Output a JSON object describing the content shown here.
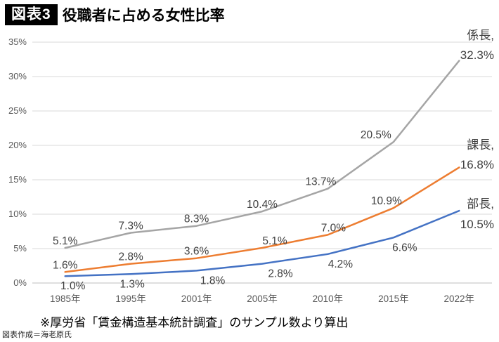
{
  "header": {
    "badge": "図表3",
    "title": "役職者に占める女性比率"
  },
  "footnote": "※厚労省「賃金構造基本統計調査」のサンプル数より算出",
  "credit": "図表作成＝海老原氏",
  "colors": {
    "series_gray": "#A5A5A5",
    "series_orange": "#ED7D31",
    "series_blue": "#4472C4",
    "gridline": "#D9D9D9",
    "axis_line": "#BFBFBF",
    "data_label_text": "#404040",
    "tick_text": "#595959",
    "badge_bg": "#000000",
    "badge_text": "#FFFFFF"
  },
  "chart_data": {
    "type": "line",
    "title": "役職者に占める女性比率",
    "categories": [
      "1985年",
      "1995年",
      "2001年",
      "2005年",
      "2010年",
      "2015年",
      "2022年"
    ],
    "series": [
      {
        "name": "係長",
        "legend_lines": [
          "係長,",
          "32.3%"
        ],
        "color": "#A5A5A5",
        "values": [
          5.1,
          7.3,
          8.3,
          10.4,
          13.7,
          20.5,
          32.3
        ]
      },
      {
        "name": "課長",
        "legend_lines": [
          "課長,",
          "16.8%"
        ],
        "color": "#ED7D31",
        "values": [
          1.6,
          2.8,
          3.6,
          5.1,
          7.0,
          10.9,
          16.8
        ]
      },
      {
        "name": "部長",
        "legend_lines": [
          "部長,",
          "10.5%"
        ],
        "color": "#4472C4",
        "values": [
          1.0,
          1.3,
          1.8,
          2.8,
          4.2,
          6.6,
          10.5
        ]
      }
    ],
    "xlabel": "",
    "ylabel": "",
    "ylim": [
      0,
      35
    ],
    "ytick_step": 5,
    "yticks": [
      "0%",
      "5%",
      "10%",
      "15%",
      "20%",
      "25%",
      "30%",
      "35%"
    ],
    "grid": true,
    "data_labels": true,
    "legend_position": "right-end-labels"
  }
}
